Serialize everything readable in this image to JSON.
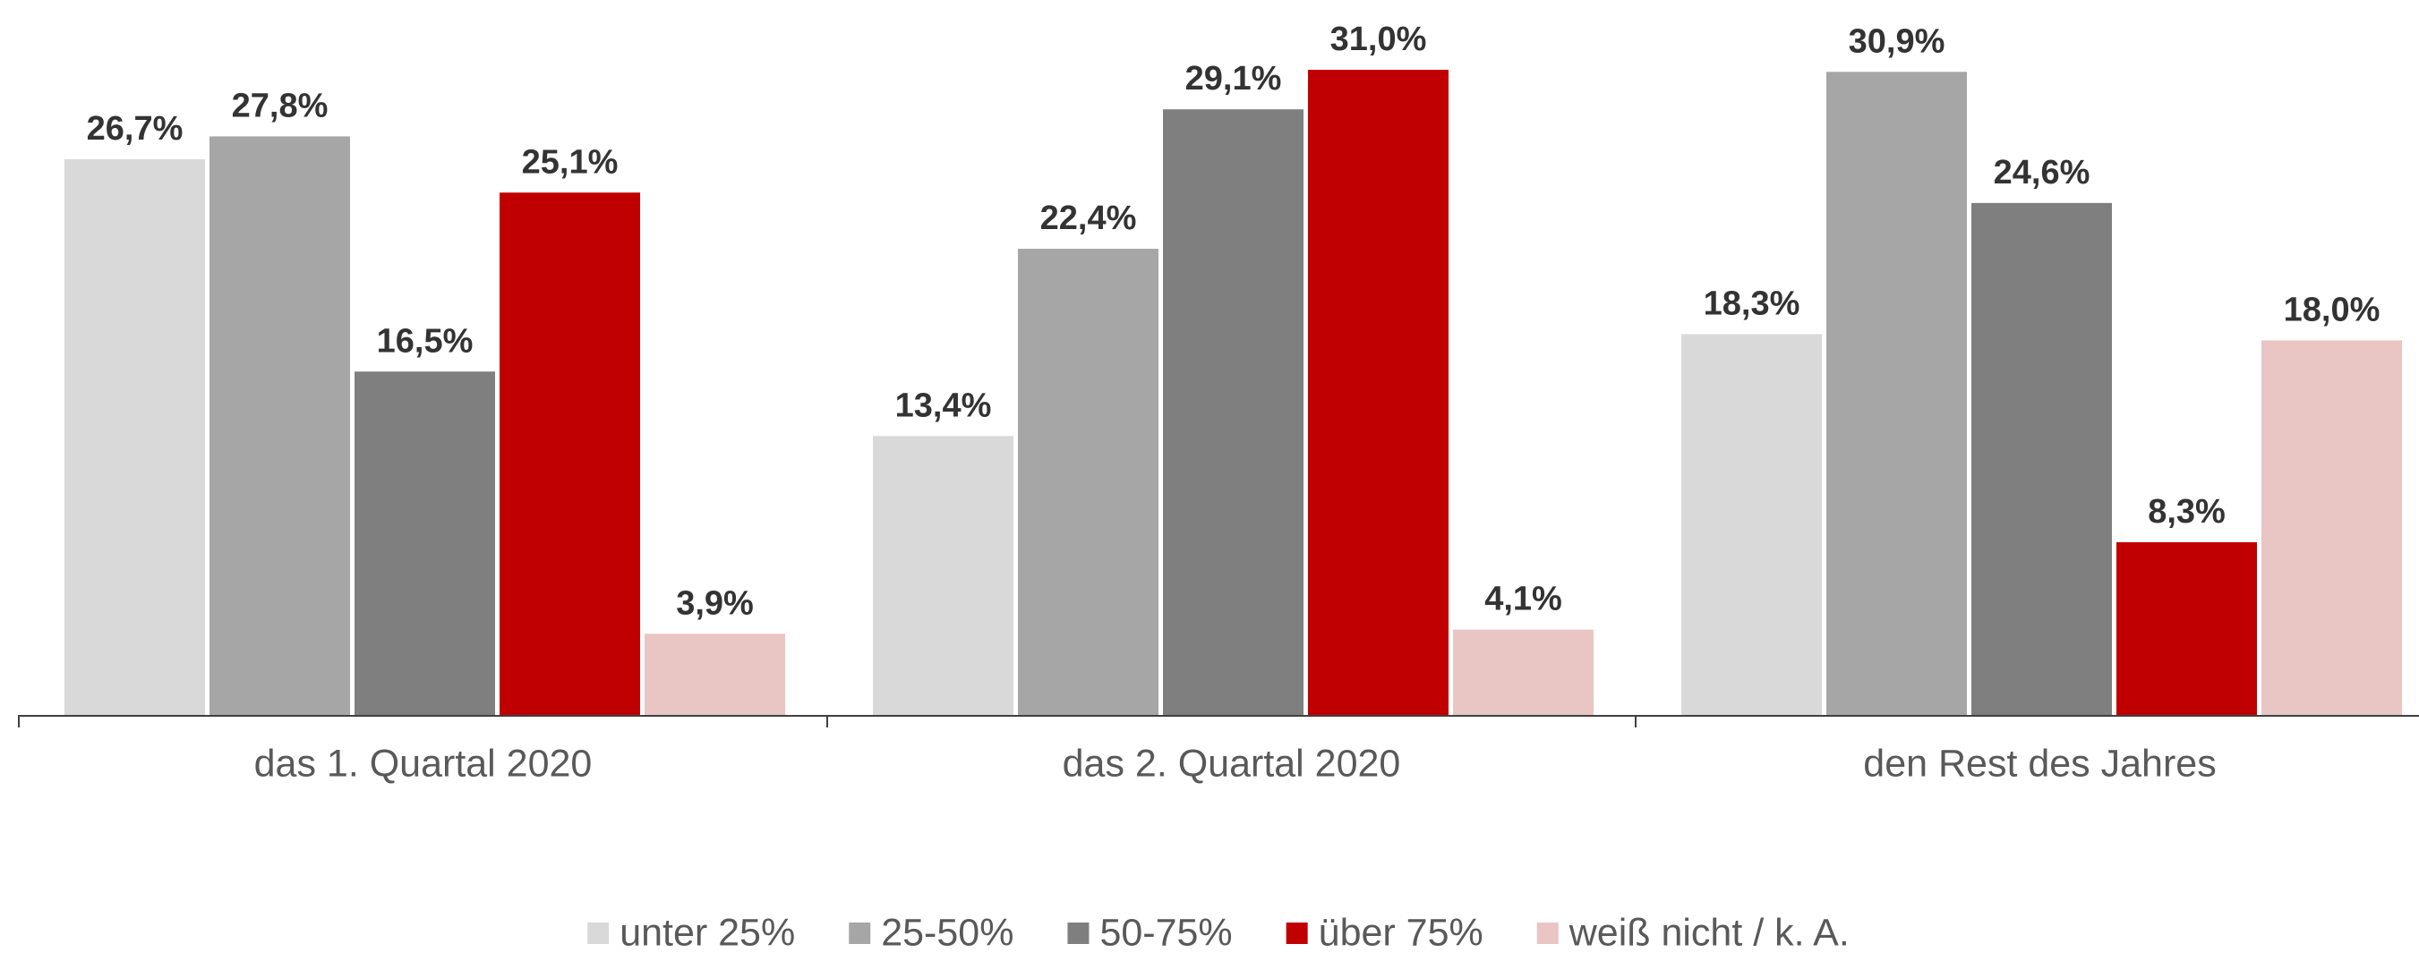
{
  "chart_data": {
    "type": "bar",
    "categories": [
      "das 1. Quartal 2020",
      "das 2. Quartal 2020",
      "den Rest des Jahres"
    ],
    "series": [
      {
        "name": "unter 25%",
        "color": "#d9d9d9",
        "values": [
          26.7,
          13.4,
          18.3
        ],
        "value_labels": [
          "26,7%",
          "13,4%",
          "18,3%"
        ]
      },
      {
        "name": "25-50%",
        "color": "#a6a6a6",
        "values": [
          27.8,
          22.4,
          30.9
        ],
        "value_labels": [
          "27,8%",
          "22,4%",
          "30,9%"
        ]
      },
      {
        "name": "50-75%",
        "color": "#7f7f7f",
        "values": [
          16.5,
          29.1,
          24.6
        ],
        "value_labels": [
          "16,5%",
          "29,1%",
          "24,6%"
        ]
      },
      {
        "name": "über 75%",
        "color": "#c00000",
        "values": [
          25.1,
          31.0,
          8.3
        ],
        "value_labels": [
          "25,1%",
          "31,0%",
          "8,3%"
        ]
      },
      {
        "name": "weiß nicht / k. A.",
        "color": "#e9c5c4",
        "values": [
          3.9,
          4.1,
          18.0
        ],
        "value_labels": [
          "3,9%",
          "4,1%",
          "18,0%"
        ]
      }
    ],
    "legend": "bottom"
  }
}
